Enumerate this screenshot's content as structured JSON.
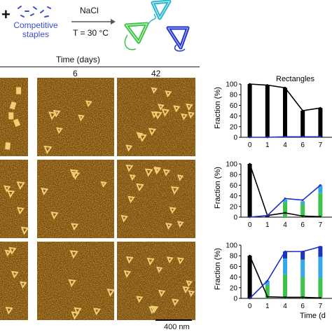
{
  "header": {
    "plus": "+",
    "staples_label_line1": "Competitive",
    "staples_label_line2": "staples",
    "salt": "NaCl",
    "temp": "T = 30 °C"
  },
  "time_axis": {
    "title": "Time (days)",
    "columns": [
      "",
      "6",
      "42"
    ]
  },
  "scale_bar_label": "400 nm",
  "colors": {
    "afm_base": "#7a4a05",
    "afm_bright": "#f0d070",
    "black_bar": "#000000",
    "blue_line": "#1a2fc8",
    "green": "#3ec24a",
    "cyan": "#35a8e8",
    "navy": "#1e34b8"
  },
  "chart_data": [
    {
      "type": "bar",
      "title": "Rectangles",
      "ylabel": "Fraction (%)",
      "xlabel": "",
      "categories": [
        "0",
        "1",
        "4",
        "6",
        "7"
      ],
      "ylim": [
        0,
        100
      ],
      "series": [
        {
          "values": [
            100,
            98,
            93,
            50,
            55
          ]
        }
      ],
      "lines": [
        {
          "color": "black",
          "values": [
            100,
            98,
            93,
            50,
            55
          ]
        },
        {
          "color": "blue",
          "values": [
            0,
            0,
            1,
            1,
            1
          ]
        }
      ]
    },
    {
      "type": "bar",
      "title": "",
      "ylabel": "Fraction (%)",
      "xlabel": "",
      "categories": [
        "0",
        "1",
        "4",
        "6",
        "7"
      ],
      "ylim": [
        0,
        100
      ],
      "series": [
        {
          "values": [
            100,
            2,
            0,
            0,
            0
          ]
        },
        {
          "values": [
            0,
            0,
            28,
            25,
            45
          ]
        },
        {
          "values": [
            0,
            0,
            5,
            5,
            15
          ]
        }
      ],
      "lines": [
        {
          "color": "black",
          "values": [
            100,
            3,
            8,
            2,
            1
          ]
        },
        {
          "color": "blue",
          "values": [
            0,
            3,
            35,
            32,
            60
          ]
        }
      ]
    },
    {
      "type": "bar",
      "title": "",
      "ylabel": "Fraction (%)",
      "xlabel": "Time (d",
      "categories": [
        "0",
        "1",
        "4",
        "6",
        "7"
      ],
      "ylim": [
        0,
        100
      ],
      "series": [
        {
          "values": [
            80,
            0,
            0,
            0,
            0
          ]
        },
        {
          "values": [
            0,
            25,
            45,
            40,
            38
          ]
        },
        {
          "values": [
            0,
            8,
            30,
            33,
            40
          ]
        },
        {
          "values": [
            0,
            0,
            13,
            15,
            20
          ]
        }
      ],
      "lines": [
        {
          "color": "black",
          "values": [
            80,
            3,
            2,
            2,
            1
          ]
        },
        {
          "color": "blue",
          "values": [
            0,
            33,
            88,
            88,
            97
          ]
        }
      ]
    }
  ]
}
